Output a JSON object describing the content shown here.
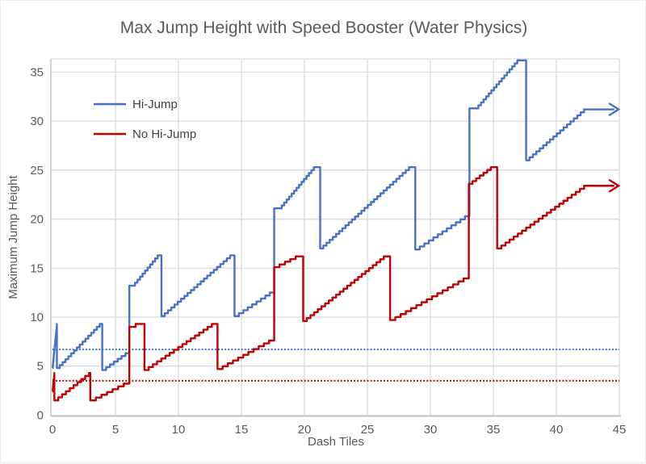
{
  "title": "Max Jump Height with Speed Booster (Water Physics)",
  "x_axis": {
    "label": "Dash Tiles",
    "ticks": [
      "0",
      "5",
      "10",
      "15",
      "20",
      "25",
      "30",
      "35",
      "40",
      "45"
    ]
  },
  "y_axis": {
    "label": "Maximum Jump Height",
    "ticks": [
      "0",
      "5",
      "10",
      "15",
      "20",
      "25",
      "30",
      "35"
    ]
  },
  "legend": {
    "items": [
      {
        "label": "Hi-Jump",
        "color": "#4472C4"
      },
      {
        "label": "No Hi-Jump",
        "color": "#C00000"
      }
    ]
  },
  "colors": {
    "hi_jump": "#4472C4",
    "no_hi_jump": "#C00000",
    "gridline": "#D9D9D9",
    "axis_line": "#BFBFBF",
    "text": "#595959",
    "legend_text": "#404040",
    "background": "#FFFFFF"
  },
  "chart_data": {
    "type": "line",
    "subtype": "staircase-sawtooth",
    "title": "Max Jump Height with Speed Booster (Water Physics)",
    "xlabel": "Dash Tiles",
    "ylabel": "Maximum Jump Height",
    "xlim": [
      0,
      45
    ],
    "ylim": [
      0,
      35
    ],
    "x_ticks": [
      0,
      5,
      10,
      15,
      20,
      25,
      30,
      35,
      40,
      45
    ],
    "y_ticks": [
      0,
      5,
      10,
      15,
      20,
      25,
      30,
      35
    ],
    "grid": true,
    "legend_position": "upper-left-inside",
    "step_height": 0.3,
    "series": [
      {
        "name": "Hi-Jump",
        "color": "#4472C4",
        "end_arrow": true,
        "path_ops": [
          [
            "M",
            0,
            4.8
          ],
          [
            "R",
            0.35,
            9.3
          ],
          [
            "V",
            4.8
          ],
          [
            "R",
            3.75,
            9.3
          ],
          [
            "H",
            3.95
          ],
          [
            "V",
            4.6
          ],
          [
            "R",
            6.1,
            6.6
          ],
          [
            "V",
            13.2
          ],
          [
            "H",
            6.35
          ],
          [
            "R",
            8.35,
            16.3
          ],
          [
            "H",
            8.65
          ],
          [
            "V",
            10.1
          ],
          [
            "R",
            14.1,
            16.3
          ],
          [
            "H",
            14.45
          ],
          [
            "V",
            10.1
          ],
          [
            "R",
            17.6,
            12.8
          ],
          [
            "V",
            21.1
          ],
          [
            "H",
            18.0
          ],
          [
            "R",
            20.75,
            25.3
          ],
          [
            "H",
            21.25
          ],
          [
            "V",
            17.0
          ],
          [
            "R",
            28.3,
            25.3
          ],
          [
            "H",
            28.8
          ],
          [
            "V",
            16.9
          ],
          [
            "R",
            33.1,
            20.6
          ],
          [
            "V",
            31.3
          ],
          [
            "H",
            33.6
          ],
          [
            "R",
            36.9,
            36.2
          ],
          [
            "H",
            37.6
          ],
          [
            "V",
            26.0
          ],
          [
            "R",
            42.2,
            31.2
          ],
          [
            "H",
            44.6
          ],
          [
            "A",
            45,
            31.2
          ]
        ]
      },
      {
        "name": "No Hi-Jump",
        "color": "#C00000",
        "end_arrow": true,
        "path_ops": [
          [
            "M",
            0,
            2.4
          ],
          [
            "R",
            0.15,
            4.3
          ],
          [
            "V",
            1.5
          ],
          [
            "R",
            2.9,
            4.3
          ],
          [
            "H",
            3.0
          ],
          [
            "V",
            1.5
          ],
          [
            "R",
            6.1,
            3.5
          ],
          [
            "V",
            9.0
          ],
          [
            "R",
            6.6,
            9.3
          ],
          [
            "H",
            7.3
          ],
          [
            "V",
            4.6
          ],
          [
            "R",
            12.65,
            9.3
          ],
          [
            "H",
            13.1
          ],
          [
            "V",
            4.7
          ],
          [
            "R",
            17.6,
            7.9
          ],
          [
            "V",
            15.1
          ],
          [
            "R",
            19.3,
            16.2
          ],
          [
            "H",
            19.9
          ],
          [
            "V",
            9.6
          ],
          [
            "R",
            26.3,
            16.2
          ],
          [
            "H",
            26.8
          ],
          [
            "V",
            9.7
          ],
          [
            "R",
            33.05,
            14.25
          ],
          [
            "V",
            23.6
          ],
          [
            "R",
            34.8,
            25.3
          ],
          [
            "H",
            35.3
          ],
          [
            "V",
            17.0
          ],
          [
            "R",
            42.2,
            23.4
          ],
          [
            "H",
            44.6
          ],
          [
            "A",
            45,
            23.4
          ]
        ]
      }
    ],
    "reference_lines": [
      {
        "series": "Hi-Jump",
        "y": 6.7,
        "style": "dotted",
        "color": "#4472C4"
      },
      {
        "series": "No Hi-Jump",
        "y": 3.5,
        "style": "dotted",
        "color": "#C00000"
      }
    ]
  }
}
